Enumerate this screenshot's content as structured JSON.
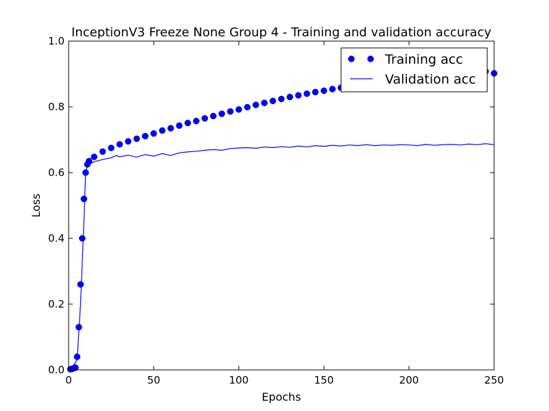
{
  "chart_data": {
    "type": "line",
    "title": "InceptionV3 Freeze None Group 4 - Training and validation accuracy",
    "xlabel": "Epochs",
    "ylabel": "Loss",
    "xlim": [
      0,
      250
    ],
    "ylim": [
      0,
      1.0
    ],
    "x_ticks": [
      0,
      50,
      100,
      150,
      200,
      250
    ],
    "y_ticks": [
      0.0,
      0.2,
      0.4,
      0.6,
      0.8,
      1.0
    ],
    "x_tick_labels": [
      "0",
      "50",
      "100",
      "150",
      "200",
      "250"
    ],
    "y_tick_labels": [
      "0.0",
      "0.2",
      "0.4",
      "0.6",
      "0.8",
      "1.0"
    ],
    "grid": false,
    "legend_position": "top-right",
    "colors": {
      "series": "#0000ff"
    },
    "series": [
      {
        "name": "Training acc",
        "style": "markers",
        "x": [
          1,
          2,
          3,
          4,
          5,
          6,
          7,
          8,
          9,
          10,
          11,
          12,
          15,
          20,
          25,
          30,
          35,
          40,
          45,
          50,
          55,
          60,
          65,
          70,
          75,
          80,
          85,
          90,
          95,
          100,
          105,
          110,
          115,
          120,
          125,
          130,
          135,
          140,
          145,
          150,
          155,
          160,
          165,
          170,
          175,
          180,
          185,
          190,
          195,
          200,
          205,
          210,
          215,
          220,
          225,
          230,
          235,
          240,
          245,
          250
        ],
        "y": [
          0.002,
          0.003,
          0.005,
          0.007,
          0.04,
          0.13,
          0.26,
          0.4,
          0.52,
          0.6,
          0.625,
          0.635,
          0.648,
          0.664,
          0.675,
          0.686,
          0.695,
          0.703,
          0.711,
          0.719,
          0.728,
          0.735,
          0.743,
          0.751,
          0.757,
          0.765,
          0.772,
          0.779,
          0.786,
          0.792,
          0.799,
          0.806,
          0.812,
          0.818,
          0.824,
          0.83,
          0.835,
          0.84,
          0.845,
          0.849,
          0.854,
          0.858,
          0.862,
          0.866,
          0.87,
          0.873,
          0.876,
          0.879,
          0.882,
          0.885,
          0.888,
          0.891,
          0.894,
          0.896,
          0.899,
          0.901,
          0.904,
          0.906,
          0.908,
          0.902
        ]
      },
      {
        "name": "Validation acc",
        "style": "line",
        "x": [
          1,
          5,
          7,
          9,
          10,
          11,
          12,
          15,
          20,
          25,
          28,
          30,
          35,
          40,
          45,
          50,
          55,
          60,
          65,
          70,
          75,
          80,
          85,
          90,
          95,
          100,
          105,
          110,
          115,
          120,
          125,
          130,
          135,
          140,
          145,
          150,
          155,
          160,
          165,
          170,
          175,
          180,
          185,
          190,
          195,
          200,
          205,
          210,
          215,
          220,
          225,
          230,
          235,
          240,
          245,
          250
        ],
        "y": [
          0.0,
          0.03,
          0.2,
          0.45,
          0.6,
          0.62,
          0.625,
          0.633,
          0.64,
          0.645,
          0.652,
          0.648,
          0.653,
          0.647,
          0.655,
          0.65,
          0.658,
          0.652,
          0.66,
          0.663,
          0.665,
          0.668,
          0.67,
          0.668,
          0.673,
          0.675,
          0.676,
          0.674,
          0.678,
          0.676,
          0.679,
          0.677,
          0.681,
          0.678,
          0.682,
          0.68,
          0.683,
          0.681,
          0.684,
          0.682,
          0.685,
          0.682,
          0.684,
          0.683,
          0.685,
          0.684,
          0.682,
          0.686,
          0.683,
          0.685,
          0.686,
          0.684,
          0.687,
          0.685,
          0.688,
          0.685
        ]
      }
    ]
  }
}
